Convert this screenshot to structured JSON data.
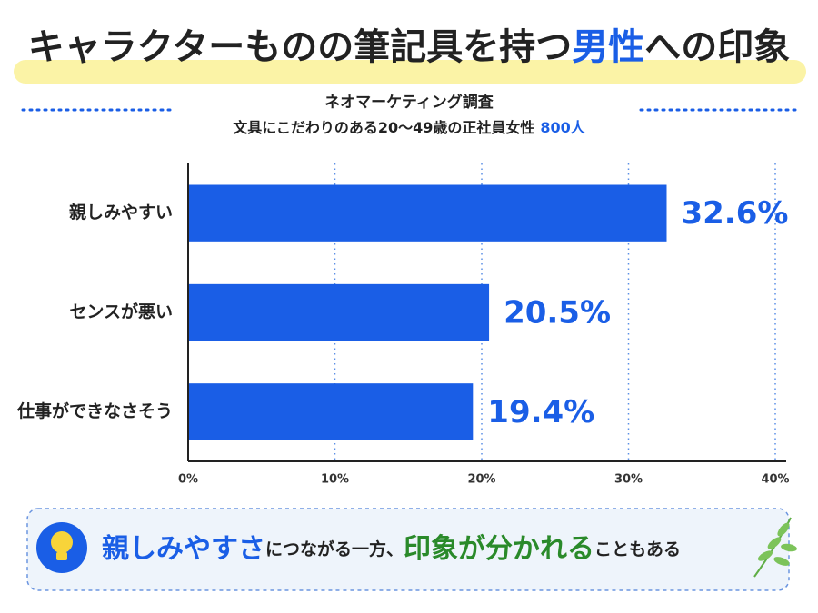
{
  "chart_data": {
    "type": "bar",
    "orientation": "horizontal",
    "title": [
      "キャラクターものの筆記具を持つ",
      "男性",
      "への印象"
    ],
    "subtitle": "ネオマーケティング調査",
    "sample": [
      "文具にこだわりのある20〜49歳の正社員女性",
      "800人"
    ],
    "categories": [
      "親しみやすい",
      "センスが悪い",
      "仕事ができなさそう"
    ],
    "values": [
      32.6,
      20.5,
      19.4
    ],
    "value_labels": [
      "32.6%",
      "20.5%",
      "19.4%"
    ],
    "color": "#1a5ee6",
    "xlim": [
      0,
      40
    ],
    "xticks": [
      {
        "value": 0,
        "label": "0%"
      },
      {
        "value": 10,
        "label": "10%"
      },
      {
        "value": 20,
        "label": "20%"
      },
      {
        "value": 30,
        "label": "30%"
      },
      {
        "value": 40,
        "label": "40%"
      }
    ],
    "grid": true,
    "footer": [
      "親しみやすさ",
      "につながる一方、",
      "印象が分かれる",
      "こともある"
    ]
  }
}
